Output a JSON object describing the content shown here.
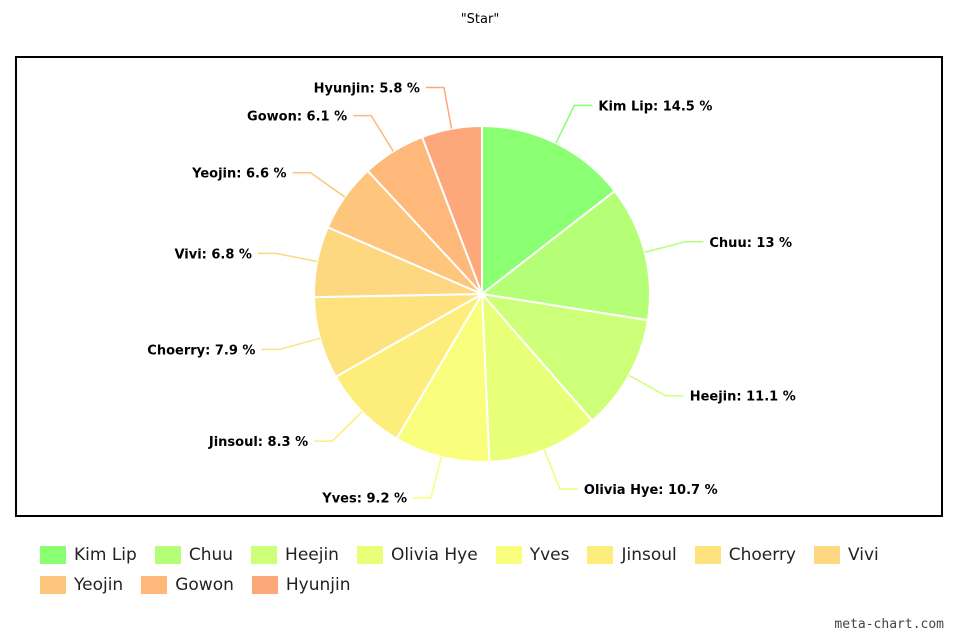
{
  "chart_data": {
    "type": "pie",
    "title": "\"Star\"",
    "slices": [
      {
        "name": "Kim Lip",
        "value": 14.5,
        "label": "Kim Lip: 14.5 %",
        "color": "#8aff72"
      },
      {
        "name": "Chuu",
        "value": 13,
        "label": "Chuu: 13 %",
        "color": "#b4ff76"
      },
      {
        "name": "Heejin",
        "value": 11.1,
        "label": "Heejin: 11.1 %",
        "color": "#cdff78"
      },
      {
        "name": "Olivia Hye",
        "value": 10.7,
        "label": "Olivia Hye: 10.7 %",
        "color": "#e8ff78"
      },
      {
        "name": "Yves",
        "value": 9.2,
        "label": "Yves: 9.2 %",
        "color": "#f9ff7c"
      },
      {
        "name": "Jinsoul",
        "value": 8.3,
        "label": "Jinsoul: 8.3 %",
        "color": "#fdee7c"
      },
      {
        "name": "Choerry",
        "value": 7.9,
        "label": "Choerry: 7.9 %",
        "color": "#fde27e"
      },
      {
        "name": "Vivi",
        "value": 6.8,
        "label": "Vivi: 6.8 %",
        "color": "#fdd880"
      },
      {
        "name": "Yeojin",
        "value": 6.6,
        "label": "Yeojin: 6.6 %",
        "color": "#fdc67c"
      },
      {
        "name": "Gowon",
        "value": 6.1,
        "label": "Gowon: 6.1 %",
        "color": "#fdb87a"
      },
      {
        "name": "Hyunjin",
        "value": 5.8,
        "label": "Hyunjin: 5.8 %",
        "color": "#fda87a"
      }
    ],
    "legend": "bottom"
  },
  "watermark": "meta-chart.com"
}
